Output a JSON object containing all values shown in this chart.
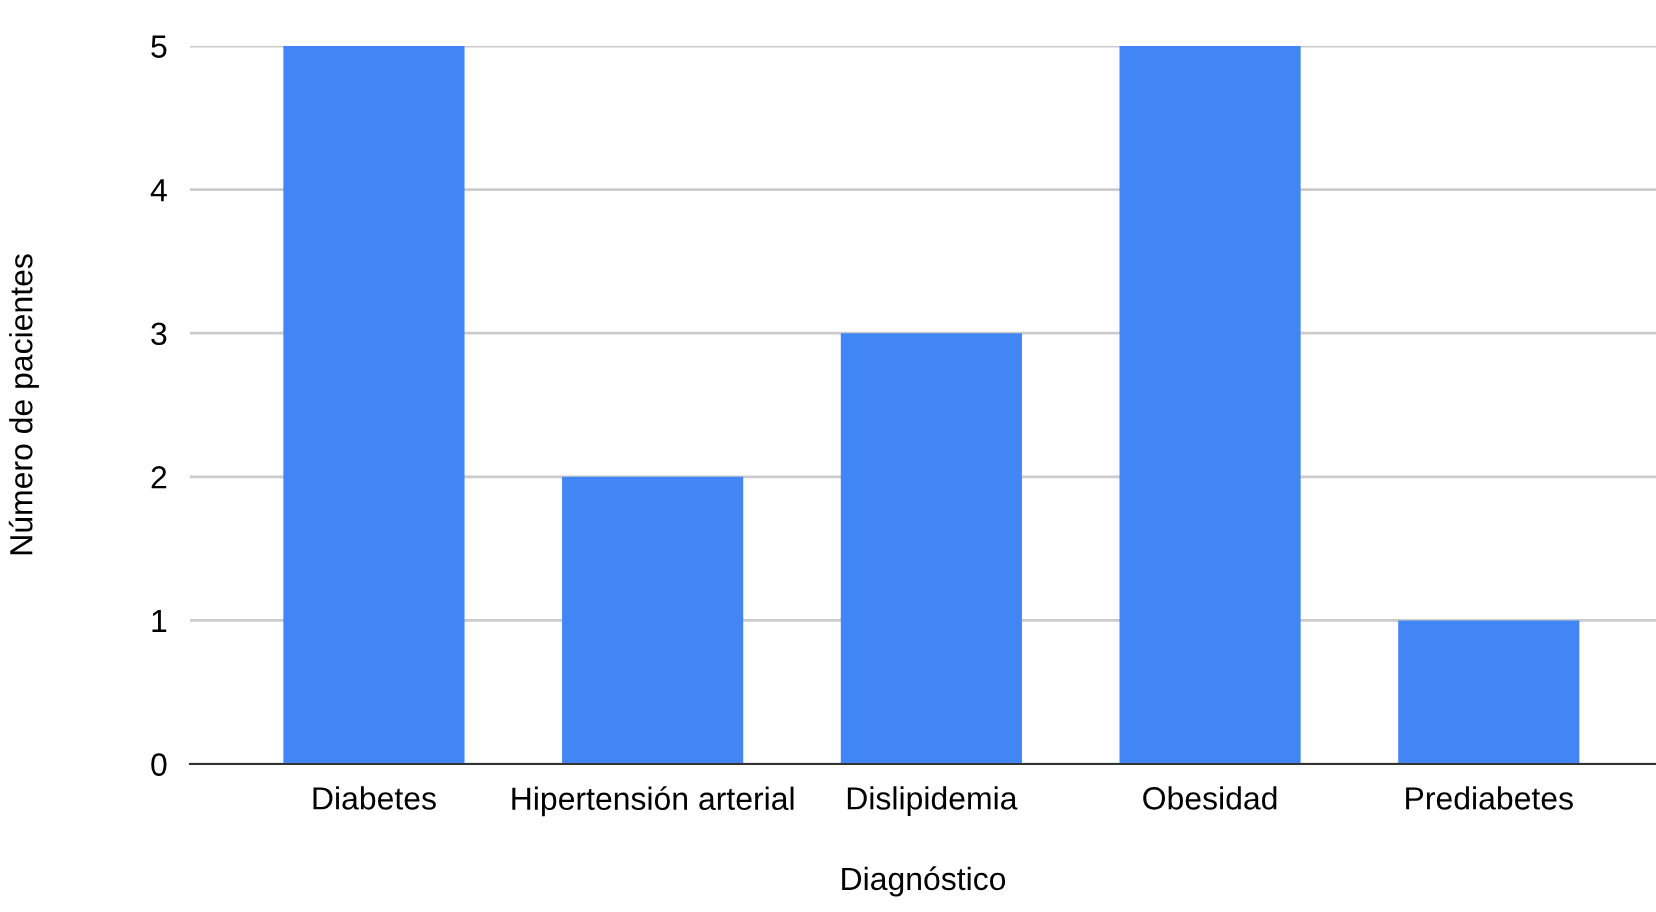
{
  "chart_data": {
    "type": "bar",
    "xlabel": "Diagnóstico",
    "ylabel": "Número de pacientes",
    "categories": [
      "Diabetes",
      "Hipertensión arterial",
      "Dislipidemia",
      "Obesidad",
      "Prediabetes"
    ],
    "values": [
      5,
      2,
      3,
      5,
      1
    ],
    "color": "#4285f4",
    "ylim": [
      0,
      5
    ],
    "yticks": [
      0,
      1,
      2,
      3,
      4,
      5
    ],
    "grid": "y",
    "legend": false
  }
}
